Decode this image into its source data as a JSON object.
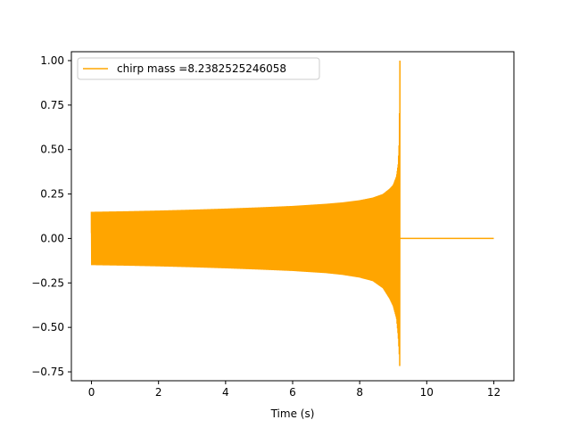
{
  "chart_data": {
    "type": "line",
    "title": "",
    "xlabel": "Time (s)",
    "ylabel": "",
    "xlim": [
      -0.6,
      12.6
    ],
    "ylim": [
      -0.8,
      1.05
    ],
    "x_ticks": [
      0,
      2,
      4,
      6,
      8,
      10,
      12
    ],
    "y_ticks": [
      -0.75,
      -0.5,
      -0.25,
      0.0,
      0.25,
      0.5,
      0.75,
      1.0
    ],
    "x_tick_labels": [
      "0",
      "2",
      "4",
      "6",
      "8",
      "10",
      "12"
    ],
    "y_tick_labels": [
      "−0.75",
      "−0.50",
      "−0.25",
      "0.00",
      "0.25",
      "0.50",
      "0.75",
      "1.00"
    ],
    "grid": false,
    "legend_position": "top-left",
    "series": [
      {
        "name": "chirp mass =8.2382525246058",
        "color": "#ffa500",
        "envelope": {
          "x": [
            0.0,
            1.0,
            2.0,
            3.0,
            4.0,
            5.0,
            6.0,
            7.0,
            7.5,
            8.0,
            8.4,
            8.7,
            8.9,
            9.0,
            9.1,
            9.15,
            9.18,
            9.2
          ],
          "upper": [
            0.15,
            0.153,
            0.157,
            0.162,
            0.168,
            0.175,
            0.183,
            0.195,
            0.203,
            0.215,
            0.23,
            0.25,
            0.28,
            0.3,
            0.35,
            0.42,
            0.55,
            1.0
          ],
          "lower": [
            -0.15,
            -0.153,
            -0.157,
            -0.162,
            -0.168,
            -0.175,
            -0.183,
            -0.195,
            -0.205,
            -0.22,
            -0.24,
            -0.28,
            -0.34,
            -0.38,
            -0.45,
            -0.55,
            -0.65,
            -0.75
          ]
        },
        "tail": {
          "x": [
            9.2,
            12.0
          ],
          "y": [
            0.0,
            0.0
          ]
        }
      }
    ]
  }
}
